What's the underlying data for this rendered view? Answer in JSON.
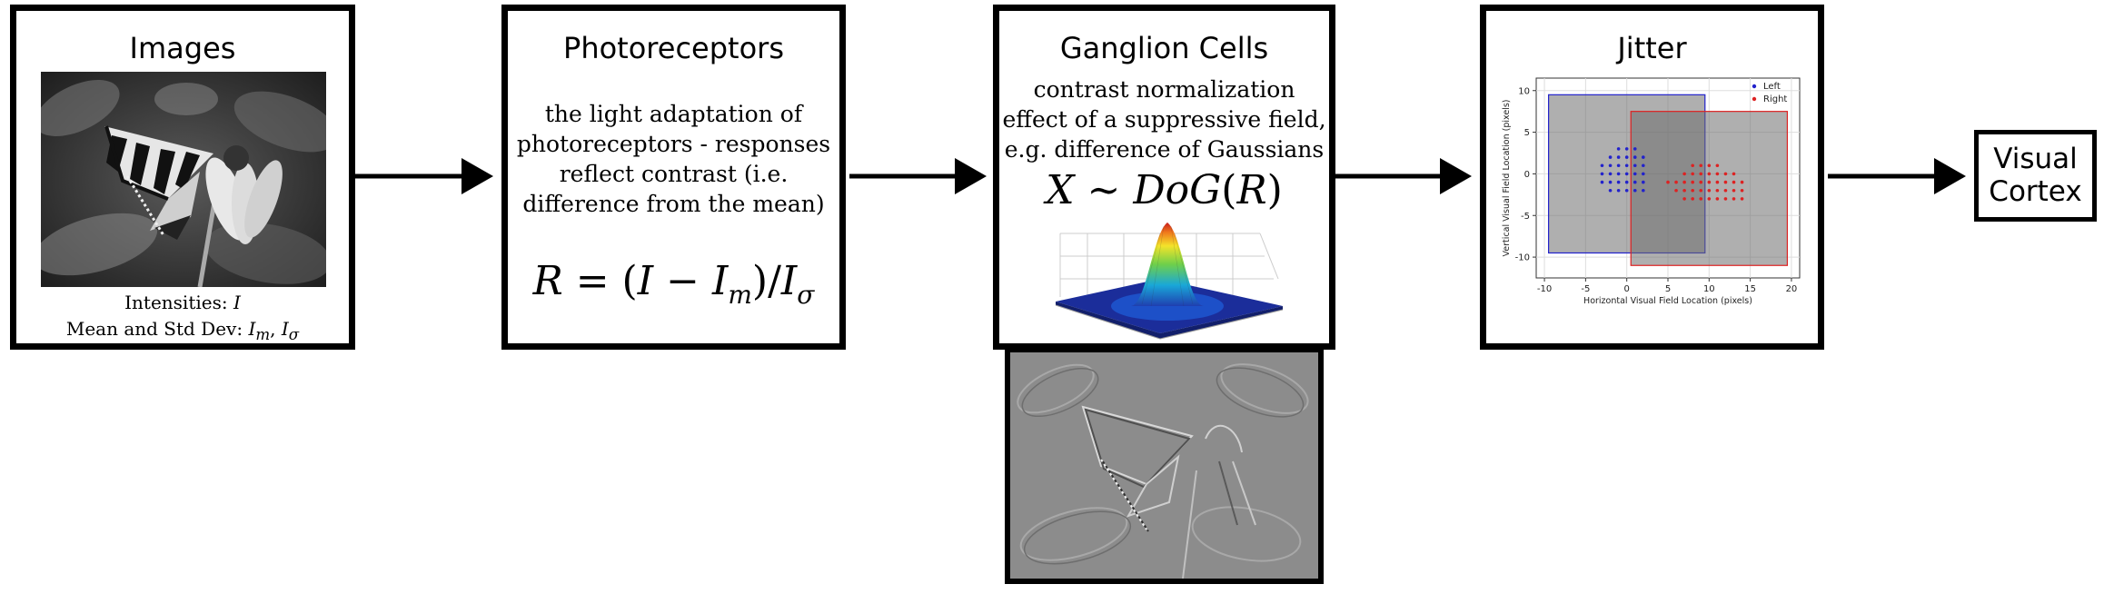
{
  "images": {
    "title": "Images",
    "intensities_label": "Intensities: I",
    "mean_std_label": "Mean and Std Dev: Im, Iσ"
  },
  "photoreceptors": {
    "title": "Photoreceptors",
    "description_lines": [
      "the light adaptation of",
      "photoreceptors - responses",
      "reflect contrast (i.e.",
      "difference from the mean)"
    ],
    "equation": "R = (I − Im)/Iσ"
  },
  "ganglion": {
    "title": "Ganglion Cells",
    "description_lines": [
      "contrast normalization",
      "effect of a suppressive field,",
      "e.g. difference of Gaussians"
    ],
    "equation": "X ~ DoG(R)"
  },
  "jitter": {
    "title": "Jitter",
    "chart_data": {
      "type": "scatter",
      "xlabel": "Horizontal Visual Field Location (pixels)",
      "ylabel": "Vertical Visual Field Location (pixels)",
      "xlim": [
        -11,
        21
      ],
      "ylim": [
        -12.5,
        11.5
      ],
      "xticks": [
        -10,
        -5,
        0,
        5,
        10,
        15,
        20
      ],
      "yticks": [
        -10,
        -5,
        0,
        5,
        10
      ],
      "grid": true,
      "legend_position": "top-right",
      "series": [
        {
          "name": "Left",
          "color": "#2222cc",
          "region": [
            -9.5,
            9.5,
            -9.5,
            9.5
          ],
          "points": [
            [
              -1,
              3
            ],
            [
              0,
              3
            ],
            [
              1,
              3
            ],
            [
              -2,
              2
            ],
            [
              -1,
              2
            ],
            [
              0,
              2
            ],
            [
              1,
              2
            ],
            [
              2,
              2
            ],
            [
              -3,
              1
            ],
            [
              -2,
              1
            ],
            [
              -1,
              1
            ],
            [
              0,
              1
            ],
            [
              1,
              1
            ],
            [
              2,
              1
            ],
            [
              -3,
              0
            ],
            [
              -2,
              0
            ],
            [
              -1,
              0
            ],
            [
              0,
              0
            ],
            [
              1,
              0
            ],
            [
              2,
              0
            ],
            [
              -3,
              -1
            ],
            [
              -2,
              -1
            ],
            [
              -1,
              -1
            ],
            [
              0,
              -1
            ],
            [
              1,
              -1
            ],
            [
              2,
              -1
            ],
            [
              -2,
              -2
            ],
            [
              -1,
              -2
            ],
            [
              0,
              -2
            ],
            [
              1,
              -2
            ],
            [
              2,
              -2
            ]
          ]
        },
        {
          "name": "Right",
          "color": "#dd2222",
          "region": [
            0.5,
            19.5,
            -11,
            7.5
          ],
          "points": [
            [
              8,
              1
            ],
            [
              9,
              1
            ],
            [
              10,
              1
            ],
            [
              11,
              1
            ],
            [
              7,
              0
            ],
            [
              8,
              0
            ],
            [
              9,
              0
            ],
            [
              10,
              0
            ],
            [
              11,
              0
            ],
            [
              12,
              0
            ],
            [
              13,
              0
            ],
            [
              5,
              -1
            ],
            [
              6,
              -1
            ],
            [
              7,
              -1
            ],
            [
              8,
              -1
            ],
            [
              9,
              -1
            ],
            [
              10,
              -1
            ],
            [
              11,
              -1
            ],
            [
              12,
              -1
            ],
            [
              13,
              -1
            ],
            [
              14,
              -1
            ],
            [
              6,
              -2
            ],
            [
              7,
              -2
            ],
            [
              8,
              -2
            ],
            [
              9,
              -2
            ],
            [
              10,
              -2
            ],
            [
              11,
              -2
            ],
            [
              12,
              -2
            ],
            [
              13,
              -2
            ],
            [
              14,
              -2
            ],
            [
              7,
              -3
            ],
            [
              8,
              -3
            ],
            [
              9,
              -3
            ],
            [
              10,
              -3
            ],
            [
              11,
              -3
            ],
            [
              12,
              -3
            ],
            [
              13,
              -3
            ],
            [
              14,
              -3
            ]
          ]
        }
      ]
    }
  },
  "cortex": {
    "label_line1": "Visual",
    "label_line2": "Cortex"
  }
}
